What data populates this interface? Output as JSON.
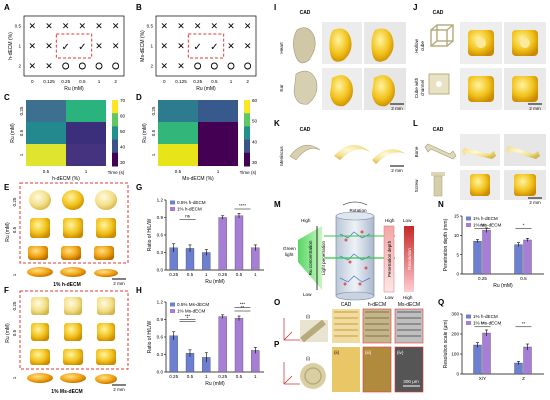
{
  "panels": {
    "A": "A",
    "B": "B",
    "C": "C",
    "D": "D",
    "E": "E",
    "F": "F",
    "G": "G",
    "H": "H",
    "I": "I",
    "J": "J",
    "K": "K",
    "L": "L",
    "M": "M",
    "N": "N",
    "O": "O",
    "P": "P",
    "Q": "Q"
  },
  "panelA": {
    "ylabel": "h-dECM (%)",
    "xlabel": "Ru (mM)",
    "yticks": [
      "0.5",
      "1",
      "2"
    ],
    "xticks": [
      "0",
      "0.125",
      "0.25",
      "0.5",
      "1",
      "2"
    ],
    "grid": [
      [
        "x",
        "x",
        "x",
        "x",
        "x",
        "x"
      ],
      [
        "x",
        "x",
        "v",
        "v",
        "x",
        "x"
      ],
      [
        "x",
        "x",
        "o",
        "o",
        "o",
        "o"
      ]
    ]
  },
  "panelB": {
    "ylabel": "Ms-dECM (%)",
    "xlabel": "Ru (mM)",
    "yticks": [
      "0.5",
      "1",
      "2"
    ],
    "xticks": [
      "0",
      "0.125",
      "0.25",
      "0.5",
      "1",
      "2"
    ],
    "grid": [
      [
        "x",
        "x",
        "x",
        "x",
        "x",
        "x"
      ],
      [
        "x",
        "x",
        "v",
        "v",
        "x",
        "x"
      ],
      [
        "x",
        "x",
        "o",
        "o",
        "o",
        "o"
      ]
    ]
  },
  "panelC": {
    "ylabel": "Ru (mM)",
    "xlabel": "h-dECM (%)",
    "yticks": [
      "0.25",
      "0.5",
      "1"
    ],
    "xticks": [
      "0.5",
      "1"
    ],
    "cbar_title": "Time (s)",
    "cbar_ticks": [
      "70",
      "60",
      "50",
      "40",
      "30"
    ],
    "colors": [
      [
        "#3d6f8e",
        "#2bb37d"
      ],
      [
        "#24898e",
        "#3b2f7c"
      ],
      [
        "#dfe42f",
        "#46337f"
      ]
    ]
  },
  "panelD": {
    "ylabel": "Ru (mM)",
    "xlabel": "Ms-dECM (%)",
    "yticks": [
      "0.25",
      "0.5",
      "1"
    ],
    "xticks": [
      "0.5",
      "1"
    ],
    "cbar_title": "Time (s)",
    "cbar_ticks": [
      "60",
      "50",
      "40",
      "30"
    ],
    "colors": [
      [
        "#2c7b8e",
        "#38598c"
      ],
      [
        "#32b67a",
        "#440154"
      ],
      [
        "#e7e419",
        "#440154"
      ]
    ]
  },
  "panelE": {
    "ylabel": "Ru (mM)",
    "yticks": [
      "0.25",
      "0.5",
      "1"
    ],
    "caption": "1% h-dECM",
    "scale": "2 mm"
  },
  "panelF": {
    "ylabel": "Ru (mM)",
    "yticks": [
      "0.25",
      "0.5",
      "1"
    ],
    "caption": "1% Ms-dECM",
    "scale": "2 mm"
  },
  "chart_data": [
    {
      "panel": "G",
      "type": "bar",
      "title": "",
      "ylabel": "Ratio of H/L/W",
      "xlabel": "Ru (mM)",
      "categories": [
        "0.25",
        "0.5",
        "1"
      ],
      "ylim": [
        0,
        1.2
      ],
      "yticks": [
        "0.0",
        "0.3",
        "0.6",
        "0.9",
        "1.2"
      ],
      "series": [
        {
          "name": "0.5% h-dECM",
          "color": "#6d7fd1",
          "values": [
            0.38,
            0.37,
            0.3
          ],
          "errors": [
            0.07,
            0.06,
            0.05
          ]
        },
        {
          "name": "1% h-dECM",
          "color": "#a77ed6",
          "values": [
            0.9,
            0.93,
            0.38
          ],
          "errors": [
            0.03,
            0.04,
            0.05
          ]
        }
      ],
      "annotations": [
        "ns",
        "****"
      ]
    },
    {
      "panel": "H",
      "type": "bar",
      "title": "",
      "ylabel": "Ratio of H/L/W",
      "xlabel": "Ru (mM)",
      "categories": [
        "0.25",
        "0.5",
        "1"
      ],
      "ylim": [
        0,
        1.2
      ],
      "yticks": [
        "0.0",
        "0.3",
        "0.6",
        "0.9",
        "1.2"
      ],
      "series": [
        {
          "name": "0.5% Ms-dECM",
          "color": "#6d7fd1",
          "values": [
            0.62,
            0.32,
            0.25
          ],
          "errors": [
            0.07,
            0.06,
            0.08
          ]
        },
        {
          "name": "1% Ms-dECM",
          "color": "#a77ed6",
          "values": [
            0.95,
            0.92,
            0.37
          ],
          "errors": [
            0.03,
            0.04,
            0.05
          ]
        }
      ],
      "annotations": [
        "*",
        "**",
        "***",
        "***"
      ]
    },
    {
      "panel": "N",
      "type": "bar",
      "title": "",
      "ylabel": "Penetration depth (mm)",
      "xlabel": "Ru (mM)",
      "categories": [
        "0.25",
        "0.5"
      ],
      "ylim": [
        0,
        15
      ],
      "yticks": [
        "0",
        "5",
        "10",
        "15"
      ],
      "series": [
        {
          "name": "1% h-dECM",
          "color": "#6d7fd1",
          "values": [
            8.5,
            7.6
          ],
          "errors": [
            0.4,
            0.5
          ]
        },
        {
          "name": "1% Ms-dECM",
          "color": "#a77ed6",
          "values": [
            11.3,
            8.8
          ],
          "errors": [
            0.6,
            0.4
          ]
        }
      ],
      "annotations": [
        "ns",
        "*"
      ]
    },
    {
      "panel": "Q",
      "type": "bar",
      "title": "",
      "ylabel": "Resolution scale (μm)",
      "xlabel": "",
      "categories": [
        "X/Y",
        "Z"
      ],
      "ylim": [
        0,
        300
      ],
      "yticks": [
        "0",
        "100",
        "200",
        "300"
      ],
      "series": [
        {
          "name": "1% h-dECM",
          "color": "#6d7fd1",
          "values": [
            145,
            55
          ],
          "errors": [
            12,
            8
          ]
        },
        {
          "name": "1% Ms-dECM",
          "color": "#a77ed6",
          "values": [
            205,
            135
          ],
          "errors": [
            15,
            15
          ]
        }
      ],
      "annotations": [
        "**",
        "**"
      ]
    }
  ],
  "panelI": {
    "cad": "CAD",
    "rows": [
      "Heart",
      "Ear"
    ],
    "scale": "2 mm"
  },
  "panelJ": {
    "cad": "CAD",
    "rows": [
      "Hollow cube",
      "Cube with channel"
    ],
    "scale": "2 mm"
  },
  "panelK": {
    "cad": "CAD",
    "row": "Meniscus",
    "scale": "2 mm"
  },
  "panelL": {
    "cad": "CAD",
    "rows": [
      "Bone",
      "Screw"
    ],
    "scale": "2 mm"
  },
  "panelM": {
    "rotation": "Rotation",
    "green_light": "Green light",
    "left_axis": "Ru concentration",
    "left_axis2": "Light penetration",
    "right_axis": "Penetration depth",
    "right_axis2": "Resolution",
    "high": "High",
    "low": "Low"
  },
  "panelO": {
    "cols": [
      "CAD",
      "h-dECM",
      "Ms-dECM"
    ],
    "sub": "(i)"
  },
  "panelP": {
    "subs": [
      "(i)",
      "(ii)",
      "(iii)",
      "(iv)"
    ],
    "scale": "300 μm"
  }
}
